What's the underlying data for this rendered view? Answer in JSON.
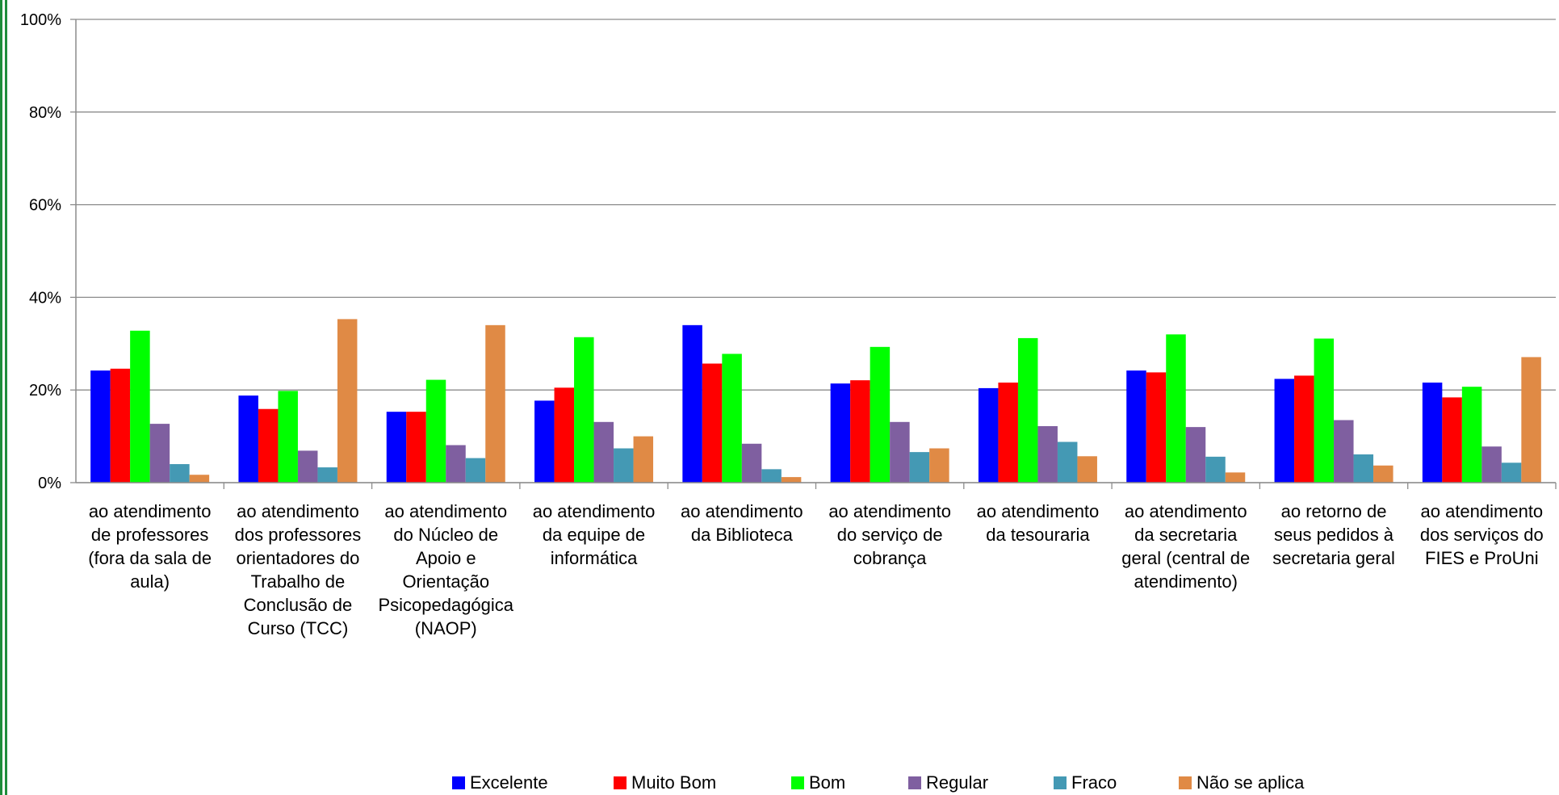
{
  "chart_data": {
    "type": "bar",
    "categories": [
      [
        "ao atendimento",
        "de professores",
        "(fora da sala de",
        "aula)"
      ],
      [
        "ao atendimento",
        "dos professores",
        "orientadores do",
        "Trabalho de",
        "Conclusão de",
        "Curso (TCC)"
      ],
      [
        "ao atendimento",
        "do Núcleo de",
        "Apoio e",
        "Orientação",
        "Psicopedagógica",
        "(NAOP)"
      ],
      [
        "ao atendimento",
        "da equipe de",
        "informática"
      ],
      [
        "ao atendimento",
        "da Biblioteca"
      ],
      [
        "ao atendimento",
        "do serviço de",
        "cobrança"
      ],
      [
        "ao atendimento",
        "da tesouraria"
      ],
      [
        "ao atendimento",
        "da secretaria",
        "geral (central de",
        "atendimento)"
      ],
      [
        "ao retorno de",
        "seus pedidos à",
        "secretaria geral"
      ],
      [
        "ao atendimento",
        "dos serviços do",
        "FIES e ProUni"
      ]
    ],
    "series": [
      {
        "name": "Excelente",
        "color": "#0000FF",
        "values": [
          24.2,
          18.8,
          15.3,
          17.7,
          34.0,
          21.4,
          20.4,
          24.2,
          22.4,
          21.6
        ]
      },
      {
        "name": "Muito Bom",
        "color": "#FF0000",
        "values": [
          24.6,
          15.9,
          15.3,
          20.5,
          25.7,
          22.1,
          21.6,
          23.8,
          23.1,
          18.4
        ]
      },
      {
        "name": "Bom",
        "color": "#00FF00",
        "values": [
          32.8,
          19.8,
          22.2,
          31.4,
          27.8,
          29.3,
          31.2,
          32.0,
          31.1,
          20.7
        ]
      },
      {
        "name": "Regular",
        "color": "#7F5FA0",
        "values": [
          12.7,
          6.9,
          8.1,
          13.1,
          8.4,
          13.1,
          12.2,
          12.0,
          13.5,
          7.8
        ]
      },
      {
        "name": "Fraco",
        "color": "#4499B4",
        "values": [
          4.0,
          3.3,
          5.3,
          7.4,
          2.9,
          6.6,
          8.8,
          5.6,
          6.1,
          4.3
        ]
      },
      {
        "name": "Não se aplica",
        "color": "#E08A45",
        "values": [
          1.7,
          35.3,
          34.0,
          10.0,
          1.2,
          7.4,
          5.7,
          2.2,
          3.7,
          27.1
        ]
      }
    ],
    "ylim": [
      0,
      100
    ],
    "yticks": [
      "0%",
      "20%",
      "40%",
      "60%",
      "80%",
      "100%"
    ],
    "ytick_values": [
      0,
      20,
      40,
      60,
      80,
      100
    ],
    "grid": true,
    "legend": "bottom",
    "title": "",
    "xlabel": "",
    "ylabel": ""
  }
}
